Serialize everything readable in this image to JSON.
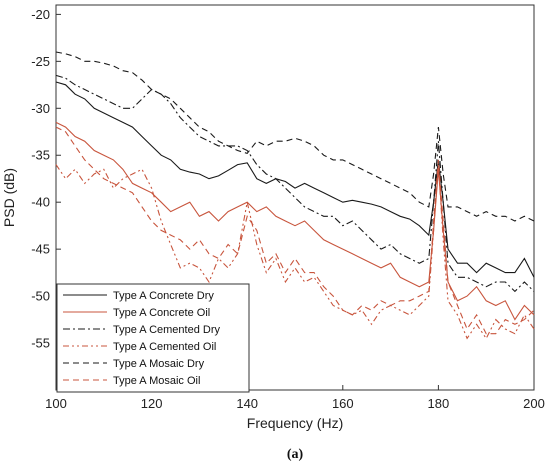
{
  "chart_data": {
    "type": "line",
    "sublabel": "(a)",
    "xlabel": "Frequency (Hz)",
    "ylabel": "PSD (dB)",
    "xlim": [
      100,
      200
    ],
    "ylim": [
      -60,
      -19
    ],
    "xticks": [
      100,
      120,
      140,
      160,
      180,
      200
    ],
    "yticks": [
      -20,
      -25,
      -30,
      -35,
      -40,
      -45,
      -50,
      -55
    ],
    "grid": false,
    "legend_position": "bottom-left",
    "series": [
      {
        "name": "Type A Concrete Dry",
        "color": "#1a1a1a",
        "dash": "solid",
        "x": [
          100,
          102,
          104,
          106,
          108,
          110,
          112,
          114,
          116,
          118,
          120,
          122,
          124,
          126,
          128,
          130,
          132,
          134,
          136,
          138,
          140,
          142,
          144,
          146,
          148,
          150,
          152,
          154,
          156,
          158,
          160,
          162,
          164,
          166,
          168,
          170,
          172,
          174,
          176,
          178,
          179,
          180,
          181,
          182,
          184,
          186,
          188,
          190,
          192,
          194,
          196,
          198,
          200
        ],
        "y": [
          -27.2,
          -27.5,
          -28.5,
          -29.0,
          -30.0,
          -30.5,
          -31.0,
          -31.5,
          -32.0,
          -33.0,
          -34.0,
          -35.0,
          -35.5,
          -36.5,
          -36.8,
          -37.0,
          -37.5,
          -37.2,
          -36.6,
          -36.0,
          -35.8,
          -37.5,
          -38.0,
          -37.5,
          -37.8,
          -38.5,
          -38.0,
          -38.5,
          -39.0,
          -39.5,
          -40.0,
          -39.8,
          -40.0,
          -40.2,
          -40.5,
          -41.0,
          -41.5,
          -41.8,
          -42.5,
          -43.5,
          -40.0,
          -35.5,
          -40.0,
          -45.0,
          -46.5,
          -46.5,
          -47.5,
          -46.5,
          -47.0,
          -47.5,
          -47.5,
          -46.0,
          -48.0
        ]
      },
      {
        "name": "Type A Concrete Oil",
        "color": "#c8553d",
        "dash": "solid",
        "x": [
          100,
          102,
          104,
          106,
          108,
          110,
          112,
          114,
          116,
          118,
          120,
          122,
          124,
          126,
          128,
          130,
          132,
          134,
          136,
          138,
          140,
          142,
          144,
          146,
          148,
          150,
          152,
          154,
          156,
          158,
          160,
          162,
          164,
          166,
          168,
          170,
          172,
          174,
          176,
          178,
          179,
          180,
          181,
          182,
          184,
          186,
          188,
          190,
          192,
          194,
          196,
          198,
          200
        ],
        "y": [
          -31.5,
          -32.0,
          -33.0,
          -33.5,
          -34.5,
          -35.0,
          -35.5,
          -36.5,
          -38.0,
          -38.5,
          -39.0,
          -40.0,
          -41.0,
          -40.5,
          -40.0,
          -41.5,
          -41.0,
          -42.0,
          -41.0,
          -40.5,
          -40.0,
          -41.0,
          -40.5,
          -41.5,
          -42.0,
          -42.5,
          -42.0,
          -43.0,
          -44.0,
          -44.5,
          -45.0,
          -45.5,
          -46.0,
          -46.5,
          -47.0,
          -46.5,
          -48.0,
          -48.5,
          -49.0,
          -48.5,
          -43.0,
          -36.5,
          -43.0,
          -48.5,
          -50.5,
          -50.0,
          -49.0,
          -50.5,
          -51.0,
          -50.5,
          -52.5,
          -51.0,
          -52.0
        ]
      },
      {
        "name": "Type A Cemented Dry",
        "color": "#1a1a1a",
        "dash": "dashdot",
        "x": [
          100,
          102,
          104,
          106,
          108,
          110,
          112,
          114,
          116,
          118,
          120,
          122,
          124,
          126,
          128,
          130,
          132,
          134,
          136,
          138,
          140,
          142,
          144,
          146,
          148,
          150,
          152,
          154,
          156,
          158,
          160,
          162,
          164,
          166,
          168,
          170,
          172,
          174,
          176,
          178,
          179,
          180,
          181,
          182,
          184,
          186,
          188,
          190,
          192,
          194,
          196,
          198,
          200
        ],
        "y": [
          -26.5,
          -26.8,
          -27.5,
          -28.0,
          -28.5,
          -29.0,
          -29.5,
          -30.0,
          -30.0,
          -29.0,
          -28.0,
          -28.5,
          -29.5,
          -31.0,
          -32.0,
          -33.0,
          -33.5,
          -34.0,
          -34.0,
          -34.0,
          -34.5,
          -36.0,
          -37.0,
          -37.5,
          -38.5,
          -39.5,
          -40.5,
          -41.0,
          -41.5,
          -41.5,
          -42.5,
          -42.0,
          -43.0,
          -44.0,
          -45.0,
          -44.5,
          -45.5,
          -46.0,
          -46.5,
          -46.0,
          -40.0,
          -33.5,
          -40.0,
          -46.5,
          -48.0,
          -48.0,
          -48.5,
          -49.0,
          -48.5,
          -48.5,
          -49.5,
          -48.5,
          -49.5
        ]
      },
      {
        "name": "Type A Cemented Oil",
        "color": "#c8553d",
        "dash": "dashdotdot",
        "x": [
          100,
          102,
          104,
          106,
          108,
          110,
          112,
          114,
          116,
          118,
          120,
          122,
          124,
          126,
          128,
          130,
          132,
          134,
          136,
          138,
          140,
          142,
          144,
          146,
          148,
          150,
          152,
          154,
          156,
          158,
          160,
          162,
          164,
          166,
          168,
          170,
          172,
          174,
          176,
          178,
          179,
          180,
          181,
          182,
          184,
          186,
          188,
          190,
          192,
          194,
          196,
          198,
          200
        ],
        "y": [
          -36.0,
          -37.5,
          -36.5,
          -38.0,
          -37.0,
          -36.5,
          -38.5,
          -37.5,
          -37.0,
          -36.5,
          -38.5,
          -42.0,
          -44.5,
          -47.0,
          -46.5,
          -47.0,
          -48.5,
          -46.0,
          -47.0,
          -45.5,
          -40.0,
          -44.5,
          -47.5,
          -46.0,
          -48.5,
          -47.0,
          -48.5,
          -48.0,
          -49.5,
          -51.0,
          -51.5,
          -52.0,
          -51.5,
          -53.0,
          -51.5,
          -51.0,
          -51.5,
          -52.0,
          -51.0,
          -50.0,
          -43.0,
          -36.0,
          -44.0,
          -50.5,
          -52.0,
          -54.5,
          -53.0,
          -54.5,
          -52.5,
          -53.5,
          -54.0,
          -52.0,
          -53.5
        ]
      },
      {
        "name": "Type A Mosaic Dry",
        "color": "#1a1a1a",
        "dash": "dash",
        "x": [
          100,
          102,
          104,
          106,
          108,
          110,
          112,
          114,
          116,
          118,
          120,
          122,
          124,
          126,
          128,
          130,
          132,
          134,
          136,
          138,
          140,
          142,
          144,
          146,
          148,
          150,
          152,
          154,
          156,
          158,
          160,
          162,
          164,
          166,
          168,
          170,
          172,
          174,
          176,
          178,
          179,
          180,
          181,
          182,
          184,
          186,
          188,
          190,
          192,
          194,
          196,
          198,
          200
        ],
        "y": [
          -24.0,
          -24.2,
          -24.5,
          -25.0,
          -25.0,
          -25.2,
          -25.5,
          -26.0,
          -26.2,
          -27.0,
          -28.0,
          -28.5,
          -29.0,
          -30.0,
          -31.0,
          -32.0,
          -32.5,
          -33.5,
          -34.0,
          -34.5,
          -34.8,
          -33.5,
          -34.0,
          -33.5,
          -33.5,
          -33.2,
          -33.5,
          -34.0,
          -35.0,
          -35.5,
          -35.5,
          -36.0,
          -36.5,
          -37.0,
          -37.5,
          -38.0,
          -38.5,
          -39.0,
          -40.0,
          -40.5,
          -37.0,
          -32.0,
          -37.0,
          -40.5,
          -40.5,
          -41.0,
          -41.5,
          -41.0,
          -41.5,
          -41.5,
          -42.0,
          -41.5,
          -42.0
        ]
      },
      {
        "name": "Type A Mosaic Oil",
        "color": "#c8553d",
        "dash": "dash",
        "x": [
          100,
          102,
          104,
          106,
          108,
          110,
          112,
          114,
          116,
          118,
          120,
          122,
          124,
          126,
          128,
          130,
          132,
          134,
          136,
          138,
          140,
          142,
          144,
          146,
          148,
          150,
          152,
          154,
          156,
          158,
          160,
          162,
          164,
          166,
          168,
          170,
          172,
          174,
          176,
          178,
          179,
          180,
          181,
          182,
          184,
          186,
          188,
          190,
          192,
          194,
          196,
          198,
          200
        ],
        "y": [
          -32.0,
          -32.5,
          -34.0,
          -35.5,
          -36.5,
          -37.5,
          -38.0,
          -38.5,
          -39.0,
          -40.5,
          -42.0,
          -43.0,
          -43.5,
          -44.0,
          -45.0,
          -44.0,
          -45.5,
          -46.0,
          -44.5,
          -45.5,
          -41.5,
          -43.0,
          -46.5,
          -45.5,
          -47.5,
          -46.0,
          -47.5,
          -47.5,
          -49.0,
          -50.0,
          -51.5,
          -52.0,
          -51.0,
          -51.5,
          -50.5,
          -51.0,
          -50.5,
          -50.5,
          -50.0,
          -49.5,
          -42.0,
          -35.5,
          -42.0,
          -48.5,
          -51.0,
          -53.5,
          -52.0,
          -54.0,
          -54.0,
          -52.5,
          -53.0,
          -52.5,
          -51.5
        ]
      }
    ]
  }
}
